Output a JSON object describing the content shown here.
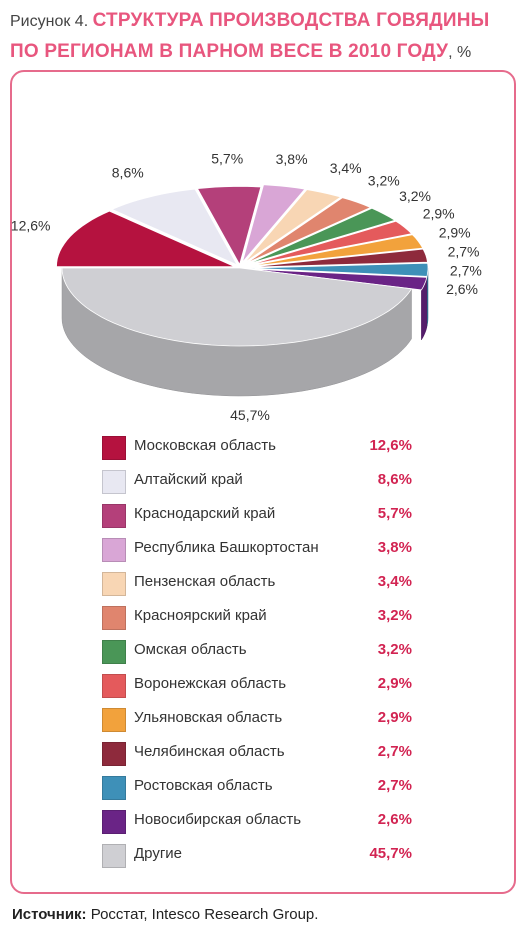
{
  "header": {
    "figure_label": "Рисунок 4.",
    "title": "СТРУКТУРА ПРОИЗВОДСТВА ГОВЯДИНЫ ПО РЕГИОНАМ В ПАРНОМ ВЕСЕ В 2010 ГОДУ",
    "unit": ", %"
  },
  "chart_data": {
    "type": "pie",
    "title": "СТРУКТУРА ПРОИЗВОДСТВА ГОВЯДИНЫ ПО РЕГИОНАМ В ПАРНОМ ВЕСЕ В 2010 ГОДУ",
    "unit": "%",
    "style": "3d-exploded",
    "legend_position": "bottom",
    "categories": [
      "Московская область",
      "Алтайский край",
      "Краснодарский край",
      "Республика Башкортостан",
      "Пензенская область",
      "Красноярский край",
      "Омская область",
      "Воронежская область",
      "Ульяновская область",
      "Челябинская область",
      "Ростовская область",
      "Новосибирская область",
      "Другие"
    ],
    "values": [
      12.6,
      8.6,
      5.7,
      3.8,
      3.4,
      3.2,
      3.2,
      2.9,
      2.9,
      2.7,
      2.7,
      2.6,
      45.7
    ],
    "labels": [
      "12,6%",
      "8,6%",
      "5,7%",
      "3,8%",
      "3,4%",
      "3,2%",
      "3,2%",
      "2,9%",
      "2,9%",
      "2,7%",
      "2,7%",
      "2,6%",
      "45,7%"
    ],
    "colors": [
      "#b5123f",
      "#e8e8f2",
      "#b4407a",
      "#d9a6d6",
      "#f8d6b4",
      "#e0856e",
      "#4a9657",
      "#e45a5c",
      "#f2a23c",
      "#8e2a3c",
      "#3e90b8",
      "#6a2486",
      "#cfcfd3"
    ]
  },
  "source": {
    "label": "Источник:",
    "text": " Росстат, Intesco Research Group."
  }
}
